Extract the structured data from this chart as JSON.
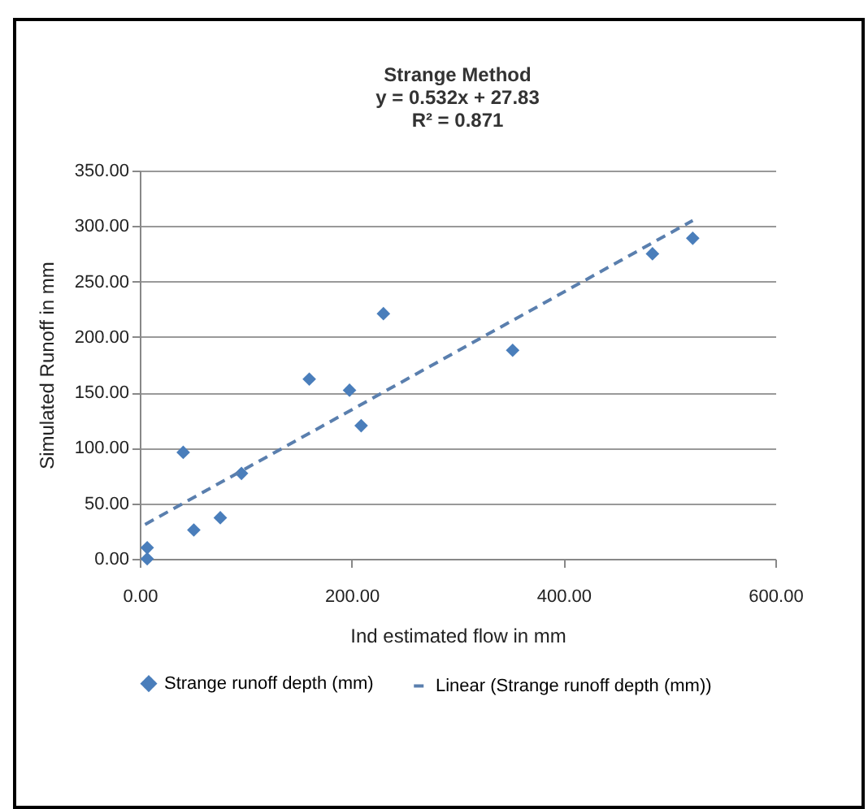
{
  "chart_data": {
    "type": "scatter",
    "title": "Strange Method",
    "annotations": [
      "y = 0.532x + 27.83",
      "R² = 0.871"
    ],
    "xlabel": "Ind estimated flow in mm",
    "ylabel": "Simulated Runoff in mm",
    "xlim": [
      0,
      600
    ],
    "ylim": [
      0,
      350
    ],
    "xticks": [
      {
        "value": 0,
        "label": "0.00"
      },
      {
        "value": 200,
        "label": "200.00"
      },
      {
        "value": 400,
        "label": "400.00"
      },
      {
        "value": 600,
        "label": "600.00"
      }
    ],
    "yticks": [
      {
        "value": 0,
        "label": "0.00"
      },
      {
        "value": 50,
        "label": "50.00"
      },
      {
        "value": 100,
        "label": "100.00"
      },
      {
        "value": 150,
        "label": "150.00"
      },
      {
        "value": 200,
        "label": "200.00"
      },
      {
        "value": 250,
        "label": "250.00"
      },
      {
        "value": 300,
        "label": "300.00"
      },
      {
        "value": 350,
        "label": "350.00"
      }
    ],
    "grid": "y",
    "legend": "bottom",
    "series": [
      {
        "name": "Strange runoff depth (mm)",
        "marker": "diamond",
        "color": "#4a7ebb",
        "x": [
          7,
          7,
          41,
          51,
          76,
          96,
          160,
          198,
          209,
          230,
          352,
          484,
          522
        ],
        "values": [
          0,
          10,
          96,
          26,
          37,
          77,
          162,
          152,
          120,
          221,
          188,
          275,
          289
        ]
      },
      {
        "name": "Linear (Strange runoff depth (mm))",
        "type": "line",
        "line_style": "dashed",
        "marker": "none",
        "color": "#5a7fae",
        "x": [
          5,
          522
        ],
        "values": [
          31,
          305
        ]
      }
    ]
  }
}
